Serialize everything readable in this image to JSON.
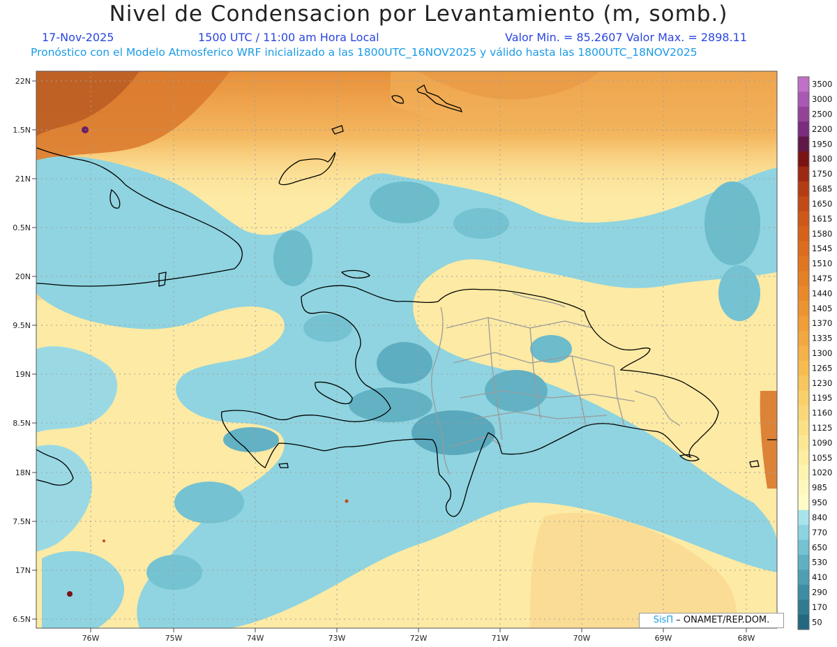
{
  "title": "Nivel de Condensacion por Levantamiento (m, somb.)",
  "date": "17-Nov-2025",
  "time": "1500 UTC / 11:00 am Hora Local",
  "minmax": "Valor Min. = 85.2607  Valor Max. = 2898.11",
  "forecast_line": "Pronóstico con el Modelo Atmosferico WRF inicializado a las 1800UTC_16NOV2025 y válido hasta las  1800UTC_18NOV2025",
  "lat_labels": [
    "22N",
    "1.5N",
    "21N",
    "0.5N",
    "20N",
    "9.5N",
    "19N",
    "8.5N",
    "18N",
    "7.5N",
    "17N",
    "6.5N"
  ],
  "lon_labels": [
    "76W",
    "75W",
    "74W",
    "73W",
    "72W",
    "71W",
    "70W",
    "69W",
    "68W"
  ],
  "colorbar": {
    "levels": [
      "3500",
      "3000",
      "2500",
      "2200",
      "1950",
      "1800",
      "1750",
      "1685",
      "1650",
      "1615",
      "1580",
      "1545",
      "1510",
      "1475",
      "1440",
      "1405",
      "1370",
      "1335",
      "1300",
      "1265",
      "1230",
      "1195",
      "1160",
      "1125",
      "1090",
      "1055",
      "1020",
      "985",
      "950",
      "840",
      "770",
      "650",
      "530",
      "410",
      "290",
      "170",
      "50"
    ],
    "colors": [
      "#c070c8",
      "#aa58b4",
      "#944298",
      "#7c2c7e",
      "#601848",
      "#7a1414",
      "#9c2a12",
      "#b23c14",
      "#c24a16",
      "#ce5818",
      "#d6621a",
      "#dc6c1e",
      "#e07622",
      "#e48026",
      "#e88a2c",
      "#ec9432",
      "#f09e38",
      "#f2a840",
      "#f4b248",
      "#f6bc52",
      "#f8c65e",
      "#f9d06a",
      "#fad878",
      "#fbe086",
      "#fce894",
      "#fdeea2",
      "#fef4b0",
      "#fff8be",
      "#fffcc8",
      "#a8e4ec",
      "#8cd4e0",
      "#74c2d2",
      "#60b0c4",
      "#4e9eb4",
      "#3e8ca4",
      "#307a92",
      "#236880"
    ]
  },
  "footer": {
    "brand": "SisΠ",
    "text": "– ONAMET/REP.DOM."
  }
}
